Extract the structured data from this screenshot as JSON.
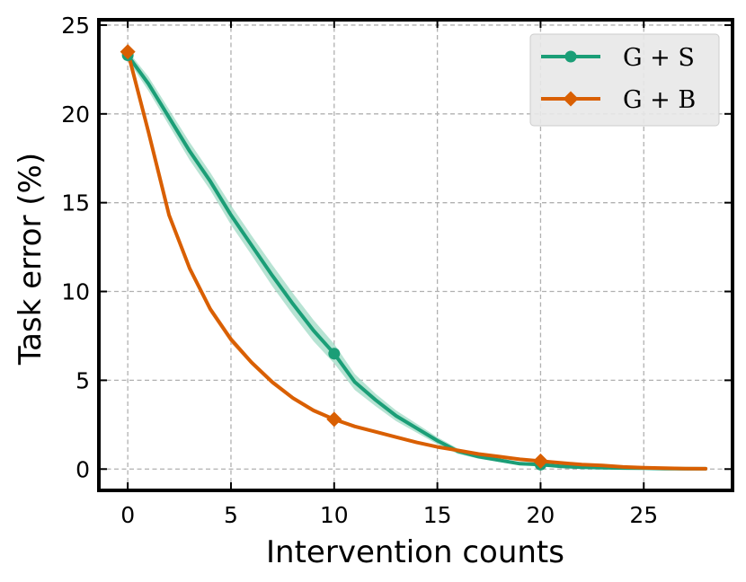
{
  "chart_data": {
    "type": "line",
    "title": "",
    "xlabel": "Intervention counts",
    "ylabel": "Task error (%)",
    "xlim": [
      -1.4,
      29.3
    ],
    "ylim": [
      -1.2,
      25.3
    ],
    "xticks": [
      0,
      5,
      10,
      15,
      20,
      25
    ],
    "yticks": [
      0,
      5,
      10,
      15,
      20,
      25
    ],
    "grid": true,
    "legend_position": "top-right",
    "series": [
      {
        "name": "G + S",
        "color": "#1b9e77",
        "band_color": "#9fd9c4",
        "marker": "circle",
        "marker_at": [
          0,
          10,
          20
        ],
        "x": [
          0,
          1,
          2,
          3,
          4,
          5,
          6,
          7,
          8,
          9,
          10,
          11,
          12,
          13,
          14,
          15,
          16,
          17,
          18,
          19,
          20,
          21,
          22,
          23,
          24,
          25,
          26,
          27,
          28
        ],
        "y": [
          23.3,
          21.7,
          19.8,
          17.9,
          16.2,
          14.3,
          12.6,
          10.9,
          9.3,
          7.8,
          6.5,
          4.9,
          3.9,
          3.0,
          2.3,
          1.6,
          1.0,
          0.7,
          0.5,
          0.3,
          0.25,
          0.15,
          0.1,
          0.08,
          0.06,
          0.05,
          0.03,
          0.02,
          0.02
        ],
        "band_halfwidth": [
          0.25,
          0.4,
          0.45,
          0.5,
          0.5,
          0.55,
          0.55,
          0.6,
          0.6,
          0.6,
          0.55,
          0.45,
          0.35,
          0.3,
          0.25,
          0.2,
          0.15,
          0.12,
          0.1,
          0.08,
          0.06,
          0.05,
          0.04,
          0.03,
          0.02,
          0.02,
          0.02,
          0.01,
          0.01
        ]
      },
      {
        "name": "G + B",
        "color": "#d95f02",
        "band_color": "#f2b48a",
        "marker": "diamond",
        "marker_at": [
          0,
          10,
          20
        ],
        "x": [
          0,
          1,
          2,
          3,
          4,
          5,
          6,
          7,
          8,
          9,
          10,
          11,
          12,
          13,
          14,
          15,
          16,
          17,
          18,
          19,
          20,
          21,
          22,
          23,
          24,
          25,
          26,
          27,
          28
        ],
        "y": [
          23.5,
          19.0,
          14.3,
          11.3,
          9.0,
          7.3,
          6.0,
          4.9,
          4.0,
          3.3,
          2.8,
          2.4,
          2.1,
          1.8,
          1.5,
          1.25,
          1.05,
          0.85,
          0.7,
          0.55,
          0.45,
          0.35,
          0.25,
          0.2,
          0.12,
          0.08,
          0.05,
          0.03,
          0.02
        ],
        "band_halfwidth": [
          0.1,
          0.2,
          0.2,
          0.2,
          0.2,
          0.2,
          0.15,
          0.15,
          0.12,
          0.12,
          0.1,
          0.1,
          0.08,
          0.08,
          0.07,
          0.06,
          0.05,
          0.05,
          0.04,
          0.04,
          0.03,
          0.03,
          0.02,
          0.02,
          0.02,
          0.01,
          0.01,
          0.01,
          0.01
        ]
      }
    ]
  }
}
